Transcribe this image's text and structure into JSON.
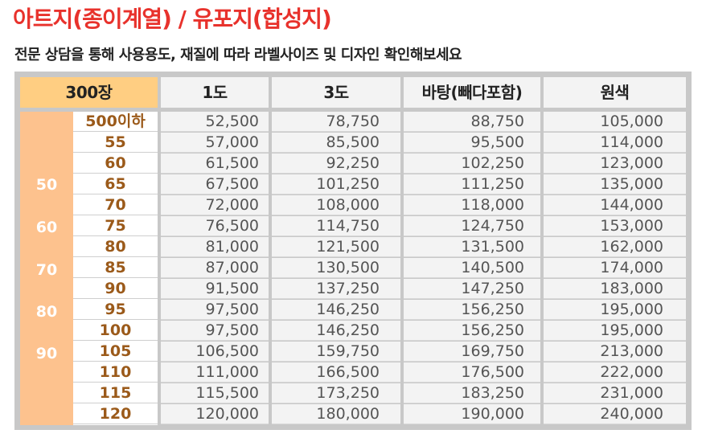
{
  "header": {
    "title": "아트지(종이계열) / 유포지(합성지)",
    "subtitle": "전문 상담을 통해 사용용도, 재질에 따라 라벨사이즈 및 디자인 확인해보세요"
  },
  "table": {
    "columns": [
      "300장",
      "1도",
      "3도",
      "바탕(빼다포함)",
      "원색"
    ],
    "width_labels": [
      "50",
      "60",
      "70",
      "80",
      "90"
    ],
    "rows": [
      {
        "qty": "500이하",
        "c1": "52,500",
        "c3": "78,750",
        "bg": "88,750",
        "full": "105,000"
      },
      {
        "qty": "55",
        "c1": "57,000",
        "c3": "85,500",
        "bg": "95,500",
        "full": "114,000"
      },
      {
        "qty": "60",
        "c1": "61,500",
        "c3": "92,250",
        "bg": "102,250",
        "full": "123,000"
      },
      {
        "qty": "65",
        "c1": "67,500",
        "c3": "101,250",
        "bg": "111,250",
        "full": "135,000"
      },
      {
        "qty": "70",
        "c1": "72,000",
        "c3": "108,000",
        "bg": "118,000",
        "full": "144,000"
      },
      {
        "qty": "75",
        "c1": "76,500",
        "c3": "114,750",
        "bg": "124,750",
        "full": "153,000"
      },
      {
        "qty": "80",
        "c1": "81,000",
        "c3": "121,500",
        "bg": "131,500",
        "full": "162,000"
      },
      {
        "qty": "85",
        "c1": "87,000",
        "c3": "130,500",
        "bg": "140,500",
        "full": "174,000"
      },
      {
        "qty": "90",
        "c1": "91,500",
        "c3": "137,250",
        "bg": "147,250",
        "full": "183,000"
      },
      {
        "qty": "95",
        "c1": "97,500",
        "c3": "146,250",
        "bg": "156,250",
        "full": "195,000"
      },
      {
        "qty": "100",
        "c1": "97,500",
        "c3": "146,250",
        "bg": "156,250",
        "full": "195,000"
      },
      {
        "qty": "105",
        "c1": "106,500",
        "c3": "159,750",
        "bg": "169,750",
        "full": "213,000"
      },
      {
        "qty": "110",
        "c1": "111,000",
        "c3": "166,500",
        "bg": "176,500",
        "full": "222,000"
      },
      {
        "qty": "115",
        "c1": "115,500",
        "c3": "173,250",
        "bg": "183,250",
        "full": "231,000"
      },
      {
        "qty": "120",
        "c1": "120,000",
        "c3": "180,000",
        "bg": "190,000",
        "full": "240,000"
      }
    ]
  },
  "colors": {
    "title": "#e8322c",
    "header_first": "#ffce82",
    "width_column": "#fdc28e",
    "qty_text": "#9b5a1a"
  }
}
